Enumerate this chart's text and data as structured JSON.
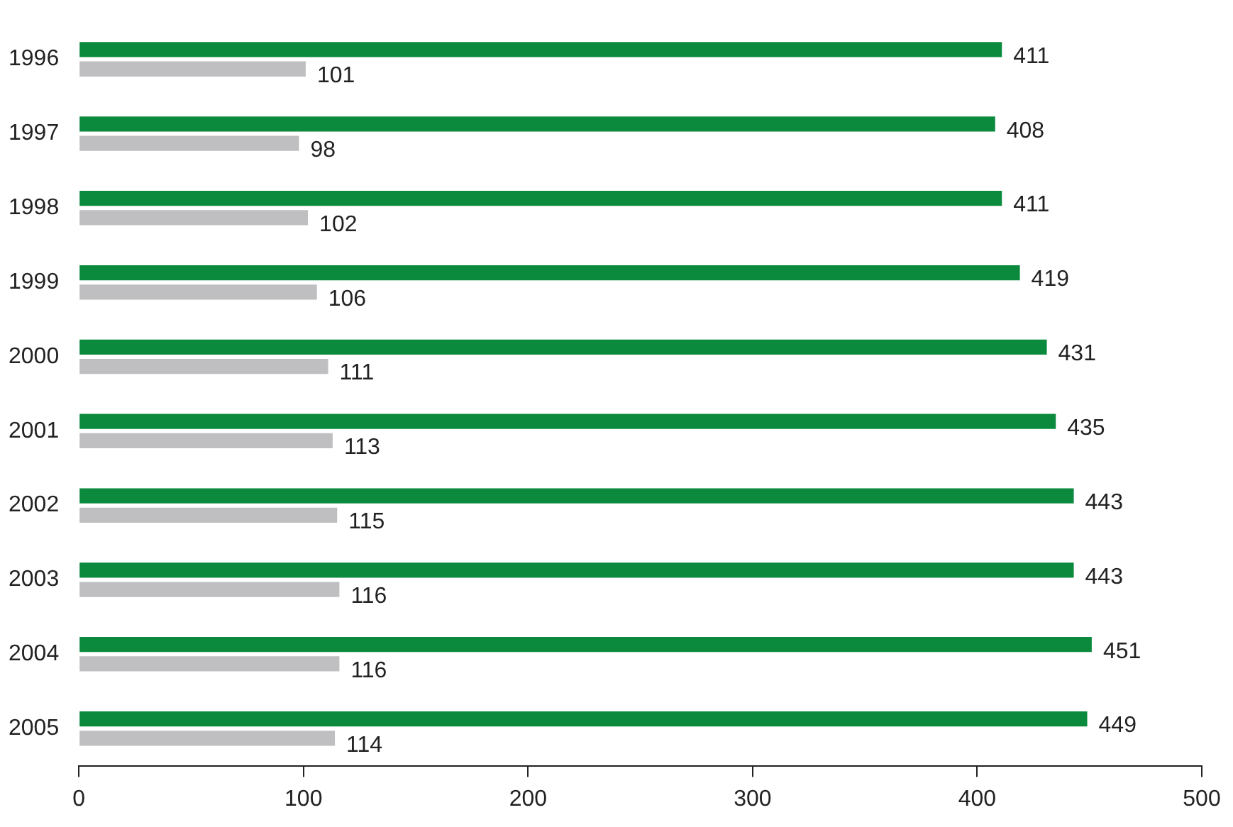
{
  "chart_data": {
    "type": "bar",
    "orientation": "horizontal",
    "categories": [
      "1996",
      "1997",
      "1998",
      "1999",
      "2000",
      "2001",
      "2002",
      "2003",
      "2004",
      "2005"
    ],
    "series": [
      {
        "color": "#0b8a3e",
        "values": [
          411,
          408,
          411,
          419,
          431,
          435,
          443,
          443,
          451,
          449
        ]
      },
      {
        "color": "#bfbfc1",
        "values": [
          101,
          98,
          102,
          106,
          111,
          113,
          115,
          116,
          116,
          114
        ]
      }
    ],
    "xlim": [
      0,
      500
    ],
    "xticks": [
      0,
      100,
      200,
      300,
      400,
      500
    ],
    "grid": false,
    "legend": false,
    "data_labels": true
  }
}
